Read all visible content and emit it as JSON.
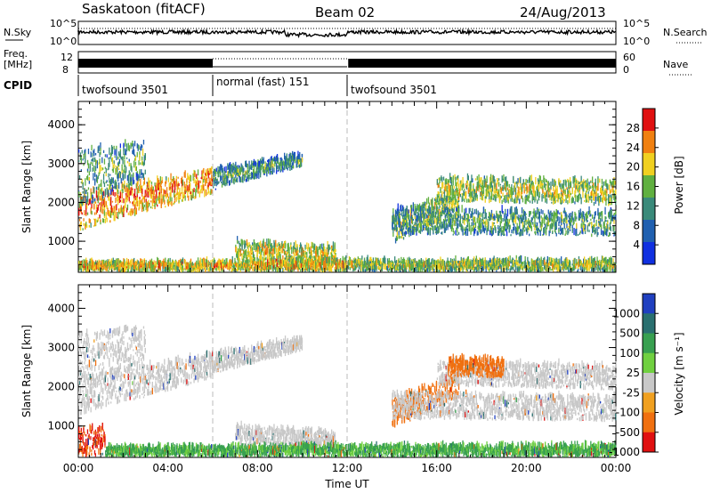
{
  "header": {
    "title": "Saskatoon (fitACF)",
    "beam": "Beam 02",
    "date": "24/Aug/2013"
  },
  "top_panels": {
    "nsky_label": "N.Sky",
    "nsky_tick_top": "10^5",
    "nsky_tick_bottom": "10^0",
    "nsearch_label": "N.Search",
    "nsearch_tick_top": "10^5",
    "nsearch_tick_bottom": "10^0",
    "freq_label_1": "Freq.",
    "freq_label_2": "[MHz]",
    "freq_tick_top": "12",
    "freq_tick_bottom": "8",
    "nave_label": "Nave",
    "nave_tick_top": "60",
    "nave_tick_bottom": "0",
    "cpid_label": "CPID"
  },
  "cpid_segments": [
    {
      "label": "twofsound 3501",
      "start_h": 0,
      "end_h": 6
    },
    {
      "label": "normal (fast) 151",
      "start_h": 6,
      "end_h": 12
    },
    {
      "label": "twofsound 3501",
      "start_h": 12,
      "end_h": 24
    }
  ],
  "chart_data": [
    {
      "type": "heatmap",
      "title": "",
      "xlabel": "",
      "ylabel": "Slant Range [km]",
      "xlim": [
        0,
        24
      ],
      "ylim": [
        200,
        4600
      ],
      "yticks": [
        "1000",
        "2000",
        "3000",
        "4000"
      ],
      "colorbar": {
        "label": "Power [dB]",
        "ticks": [
          "4",
          "8",
          "12",
          "16",
          "20",
          "24",
          "28"
        ],
        "range": [
          0,
          32
        ],
        "colors": [
          "#1030e0",
          "#2060b0",
          "#3a8a7a",
          "#60b040",
          "#f0d020",
          "#f08010",
          "#e01010"
        ]
      },
      "bands": [
        {
          "t0": 0.0,
          "t1": 6.0,
          "r0": 1250,
          "r1": 2200,
          "r0e": 2200,
          "r1e": 2800,
          "value": 20
        },
        {
          "t0": 0.0,
          "t1": 3.0,
          "r0": 1800,
          "r1": 3300,
          "r0e": 2600,
          "r1e": 3500,
          "value": 9
        },
        {
          "t0": 6.0,
          "t1": 10.0,
          "r0": 2300,
          "r1": 2800,
          "r0e": 2900,
          "r1e": 3200,
          "value": 8
        },
        {
          "t0": 7.0,
          "t1": 11.5,
          "r0": 450,
          "r1": 950,
          "r0e": 400,
          "r1e": 800,
          "value": 15
        },
        {
          "t0": 0.0,
          "t1": 12.0,
          "r0": 200,
          "r1": 400,
          "r0e": 200,
          "r1e": 450,
          "value": 17
        },
        {
          "t0": 14.0,
          "t1": 17.0,
          "r0": 900,
          "r1": 1600,
          "r0e": 1700,
          "r1e": 2300,
          "value": 13
        },
        {
          "t0": 16.0,
          "t1": 24.0,
          "r0": 2000,
          "r1": 2600,
          "r0e": 1900,
          "r1e": 2500,
          "value": 14
        },
        {
          "t0": 14.0,
          "t1": 24.0,
          "r0": 1150,
          "r1": 1800,
          "r0e": 1100,
          "r1e": 1700,
          "value": 9
        },
        {
          "t0": 12.0,
          "t1": 24.0,
          "r0": 200,
          "r1": 450,
          "r0e": 200,
          "r1e": 450,
          "value": 13
        }
      ]
    },
    {
      "type": "heatmap",
      "title": "",
      "xlabel": "Time UT",
      "ylabel": "Slant Range [km]",
      "xlim": [
        0,
        24
      ],
      "ylim": [
        200,
        4600
      ],
      "yticks": [
        "1000",
        "2000",
        "3000",
        "4000"
      ],
      "xticks": [
        "00:00",
        "04:00",
        "08:00",
        "12:00",
        "16:00",
        "20:00",
        "00:00"
      ],
      "colorbar": {
        "label": "Velocity [m s⁻¹]",
        "ticks": [
          "1000",
          "500",
          "100",
          "25",
          "-25",
          "-100",
          "-500",
          "-1000"
        ],
        "colors": [
          "#2040c0",
          "#2a7070",
          "#38a050",
          "#70d040",
          "#c8c8c8",
          "#f0a020",
          "#f07010",
          "#e01010"
        ]
      },
      "bands": [
        {
          "t0": 0.0,
          "t1": 6.0,
          "r0": 1250,
          "r1": 2200,
          "r0e": 2200,
          "r1e": 2800,
          "value": 0
        },
        {
          "t0": 0.0,
          "t1": 3.0,
          "r0": 1800,
          "r1": 3300,
          "r0e": 2600,
          "r1e": 3500,
          "value": 0
        },
        {
          "t0": 6.0,
          "t1": 10.0,
          "r0": 2300,
          "r1": 2800,
          "r0e": 2900,
          "r1e": 3200,
          "value": 0
        },
        {
          "t0": 7.0,
          "t1": 11.5,
          "r0": 450,
          "r1": 950,
          "r0e": 400,
          "r1e": 800,
          "value": 0
        },
        {
          "t0": 0.0,
          "t1": 1.2,
          "r0": 200,
          "r1": 900,
          "r0e": 200,
          "r1e": 900,
          "value": -500
        },
        {
          "t0": 1.2,
          "t1": 12.0,
          "r0": 200,
          "r1": 400,
          "r0e": 200,
          "r1e": 450,
          "value": 60
        },
        {
          "t0": 14.0,
          "t1": 17.0,
          "r0": 900,
          "r1": 1600,
          "r0e": 1700,
          "r1e": 2300,
          "value": -300
        },
        {
          "t0": 16.0,
          "t1": 24.0,
          "r0": 2000,
          "r1": 2600,
          "r0e": 1900,
          "r1e": 2500,
          "value": 0
        },
        {
          "t0": 16.5,
          "t1": 19.0,
          "r0": 2250,
          "r1": 2700,
          "r0e": 2200,
          "r1e": 2650,
          "value": -200
        },
        {
          "t0": 14.0,
          "t1": 24.0,
          "r0": 1150,
          "r1": 1800,
          "r0e": 1100,
          "r1e": 1700,
          "value": 0
        },
        {
          "t0": 12.0,
          "t1": 24.0,
          "r0": 200,
          "r1": 450,
          "r0e": 200,
          "r1e": 450,
          "value": 60
        }
      ]
    }
  ]
}
